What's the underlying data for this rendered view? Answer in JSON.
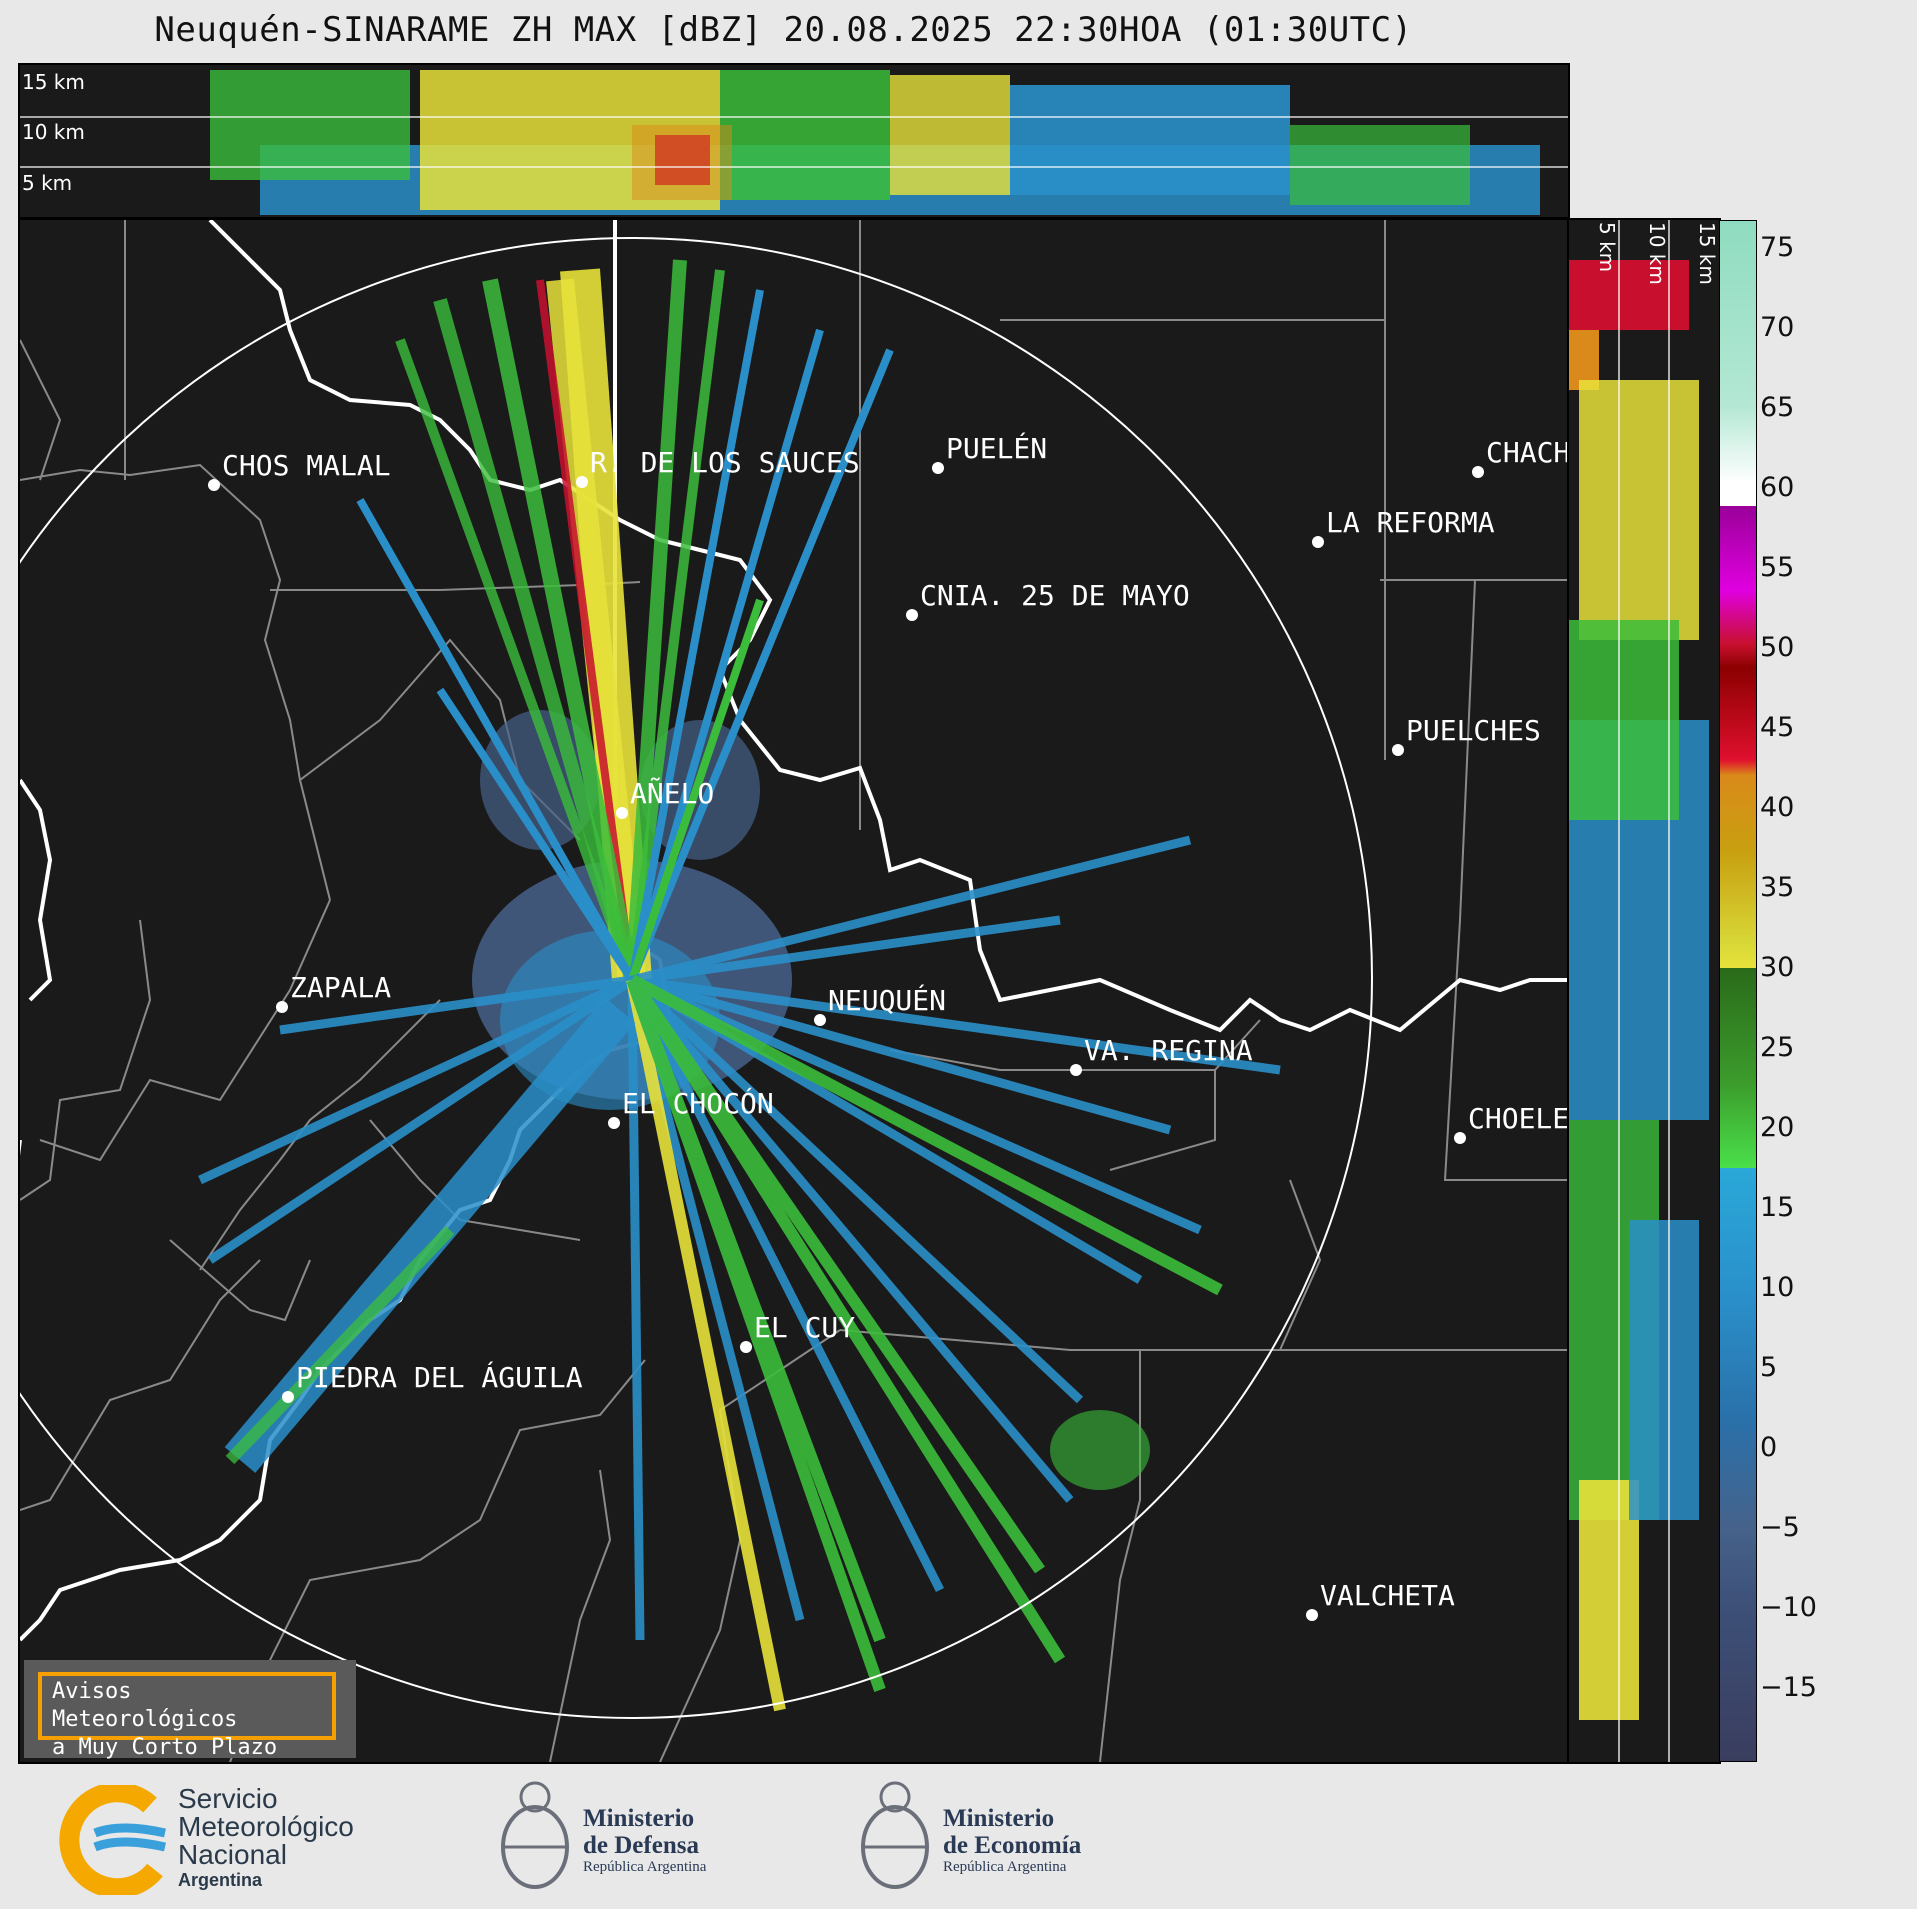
{
  "title": "Neuquén-SINARAME ZH MAX [dBZ] 20.08.2025 22:30HOA (01:30UTC)",
  "top_panel": {
    "altitude_labels": [
      "15 km",
      "10 km",
      "5 km"
    ]
  },
  "side_panel": {
    "altitude_labels": [
      "5 km",
      "10 km",
      "15 km"
    ]
  },
  "colorbar": {
    "unit": "dBZ",
    "ticks": [
      "75",
      "70",
      "65",
      "60",
      "55",
      "50",
      "45",
      "40",
      "35",
      "30",
      "25",
      "20",
      "15",
      "10",
      "5",
      "0",
      "−5",
      "−10",
      "−15"
    ],
    "colors": {
      "lt_-15": "#3a3d5e",
      "-15_0": "#46628a",
      "0_18": "#2a8fc9",
      "18_30": "#3bbd3b",
      "30_40": "#e8e23a",
      "40_48": "#d98a1a",
      "48_58": "#c8102e",
      "58_60": "#cc00cc",
      "60_75": "#8fdcc0"
    }
  },
  "cities": [
    {
      "name": "CHOS MALAL"
    },
    {
      "name": "R. DE LOS SAUCES"
    },
    {
      "name": "PUELÉN"
    },
    {
      "name": "CHACH"
    },
    {
      "name": "LA REFORMA"
    },
    {
      "name": "CNIA. 25 DE MAYO"
    },
    {
      "name": "PUELCHES"
    },
    {
      "name": "AÑELO"
    },
    {
      "name": "ZAPALA"
    },
    {
      "name": "NEUQUÉN"
    },
    {
      "name": "VA. REGINA"
    },
    {
      "name": "EL CHOCÓN"
    },
    {
      "name": "CHOELE"
    },
    {
      "name": "EL CUY"
    },
    {
      "name": "PIEDRA DEL ÁGUILA"
    },
    {
      "name": "VALCHETA"
    }
  ],
  "warning_box": {
    "line1": "Avisos Meteorológicos",
    "line2": "a Muy Corto Plazo"
  },
  "logos": {
    "smn": {
      "line1": "Servicio",
      "line2": "Meteorológico",
      "line3": "Nacional",
      "line4": "Argentina"
    },
    "defensa": {
      "line1": "Ministerio",
      "line2": "de Defensa",
      "line3": "República Argentina"
    },
    "economia": {
      "line1": "Ministerio",
      "line2": "de Economía",
      "line3": "República Argentina"
    }
  }
}
